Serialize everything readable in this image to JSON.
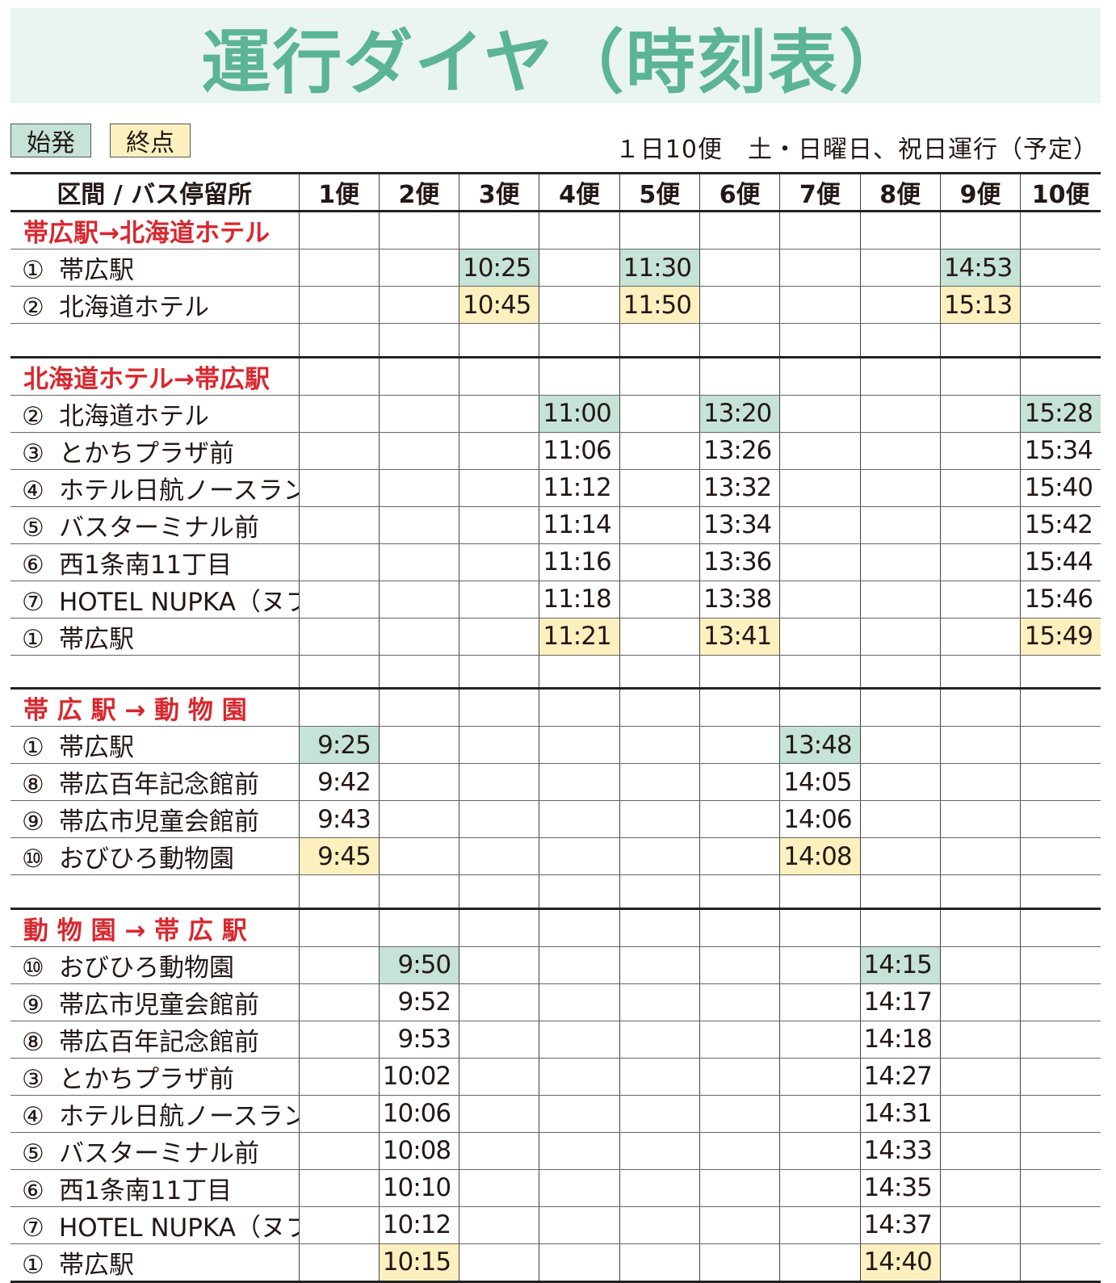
{
  "title": "運行ダイヤ（時刻表）",
  "legend": {
    "start": "始発",
    "end": "終点"
  },
  "note": "１日10便　土・日曜日、祝日運行（予定）",
  "colors": {
    "start": "#c5e3d7",
    "end": "#fdf0bf",
    "title": "#5bb594",
    "section": "#d9272e"
  },
  "header": [
    "区間 / バス停留所",
    "1便",
    "2便",
    "3便",
    "4便",
    "5便",
    "6便",
    "7便",
    "8便",
    "9便",
    "10便"
  ],
  "sections": [
    {
      "title": "帯広駅→北海道ホテル",
      "stops": [
        {
          "num": "①",
          "name": "帯広駅",
          "times": [
            "",
            "",
            "10:25",
            "",
            "11:30",
            "",
            "",
            "",
            "14:53",
            ""
          ]
        },
        {
          "num": "②",
          "name": "北海道ホテル",
          "times": [
            "",
            "",
            "10:45",
            "",
            "11:50",
            "",
            "",
            "",
            "15:13",
            ""
          ]
        }
      ]
    },
    {
      "title": "北海道ホテル→帯広駅",
      "stops": [
        {
          "num": "②",
          "name": "北海道ホテル",
          "times": [
            "",
            "",
            "",
            "11:00",
            "",
            "13:20",
            "",
            "",
            "",
            "15:28"
          ]
        },
        {
          "num": "③",
          "name": "とかちプラザ前",
          "times": [
            "",
            "",
            "",
            "11:06",
            "",
            "13:26",
            "",
            "",
            "",
            "15:34"
          ]
        },
        {
          "num": "④",
          "name": "ホテル日航ノースランド",
          "times": [
            "",
            "",
            "",
            "11:12",
            "",
            "13:32",
            "",
            "",
            "",
            "15:40"
          ]
        },
        {
          "num": "⑤",
          "name": "バスターミナル前",
          "times": [
            "",
            "",
            "",
            "11:14",
            "",
            "13:34",
            "",
            "",
            "",
            "15:42"
          ]
        },
        {
          "num": "⑥",
          "name": "西1条南11丁目",
          "times": [
            "",
            "",
            "",
            "11:16",
            "",
            "13:36",
            "",
            "",
            "",
            "15:44"
          ]
        },
        {
          "num": "⑦",
          "name": "HOTEL NUPKA（ヌプカ）前",
          "times": [
            "",
            "",
            "",
            "11:18",
            "",
            "13:38",
            "",
            "",
            "",
            "15:46"
          ]
        },
        {
          "num": "①",
          "name": "帯広駅",
          "times": [
            "",
            "",
            "",
            "11:21",
            "",
            "13:41",
            "",
            "",
            "",
            "15:49"
          ]
        }
      ]
    },
    {
      "title": "帯 広 駅 → 動 物 園",
      "stops": [
        {
          "num": "①",
          "name": "帯広駅",
          "times": [
            "9:25",
            "",
            "",
            "",
            "",
            "",
            "13:48",
            "",
            "",
            ""
          ]
        },
        {
          "num": "⑧",
          "name": "帯広百年記念館前",
          "times": [
            "9:42",
            "",
            "",
            "",
            "",
            "",
            "14:05",
            "",
            "",
            ""
          ]
        },
        {
          "num": "⑨",
          "name": "帯広市児童会館前",
          "times": [
            "9:43",
            "",
            "",
            "",
            "",
            "",
            "14:06",
            "",
            "",
            ""
          ]
        },
        {
          "num": "⑩",
          "name": "おびひろ動物園",
          "times": [
            "9:45",
            "",
            "",
            "",
            "",
            "",
            "14:08",
            "",
            "",
            ""
          ]
        }
      ]
    },
    {
      "title": "動 物 園 → 帯 広 駅",
      "stops": [
        {
          "num": "⑩",
          "name": "おびひろ動物園",
          "times": [
            "",
            "9:50",
            "",
            "",
            "",
            "",
            "",
            "14:15",
            "",
            ""
          ]
        },
        {
          "num": "⑨",
          "name": "帯広市児童会館前",
          "times": [
            "",
            "9:52",
            "",
            "",
            "",
            "",
            "",
            "14:17",
            "",
            ""
          ]
        },
        {
          "num": "⑧",
          "name": "帯広百年記念館前",
          "times": [
            "",
            "9:53",
            "",
            "",
            "",
            "",
            "",
            "14:18",
            "",
            ""
          ]
        },
        {
          "num": "③",
          "name": "とかちプラザ前",
          "times": [
            "",
            "10:02",
            "",
            "",
            "",
            "",
            "",
            "14:27",
            "",
            ""
          ]
        },
        {
          "num": "④",
          "name": "ホテル日航ノースランド",
          "times": [
            "",
            "10:06",
            "",
            "",
            "",
            "",
            "",
            "14:31",
            "",
            ""
          ]
        },
        {
          "num": "⑤",
          "name": "バスターミナル前",
          "times": [
            "",
            "10:08",
            "",
            "",
            "",
            "",
            "",
            "14:33",
            "",
            ""
          ]
        },
        {
          "num": "⑥",
          "name": "西1条南11丁目",
          "times": [
            "",
            "10:10",
            "",
            "",
            "",
            "",
            "",
            "14:35",
            "",
            ""
          ]
        },
        {
          "num": "⑦",
          "name": "HOTEL NUPKA（ヌプカ）前",
          "times": [
            "",
            "10:12",
            "",
            "",
            "",
            "",
            "",
            "14:37",
            "",
            ""
          ]
        },
        {
          "num": "①",
          "name": "帯広駅",
          "times": [
            "",
            "10:15",
            "",
            "",
            "",
            "",
            "",
            "14:40",
            "",
            ""
          ]
        }
      ]
    }
  ]
}
